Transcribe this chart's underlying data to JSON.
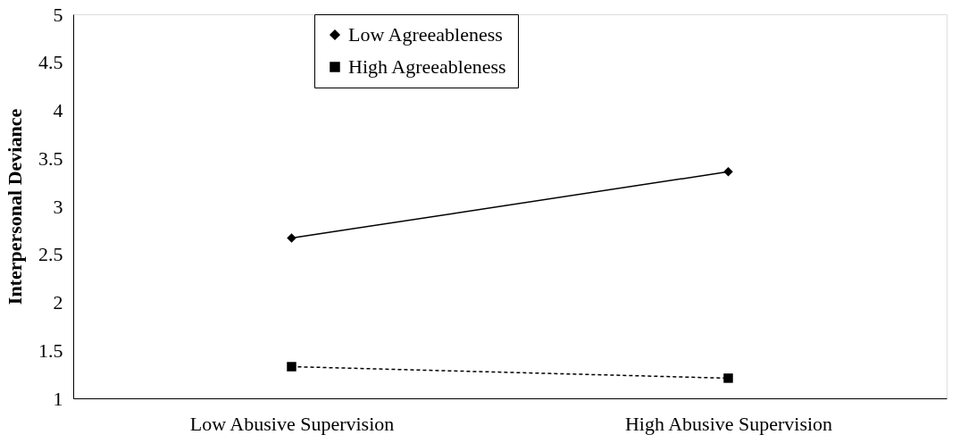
{
  "chart_data": {
    "type": "line",
    "ylabel": "Interpersonal Deviance",
    "categories": [
      "Low Abusive Supervision",
      "High Abusive Supervision"
    ],
    "series": [
      {
        "name": "Low Agreeableness",
        "color": "#000000",
        "values": [
          2.67,
          3.36
        ],
        "marker": "diamond",
        "line_style": "solid"
      },
      {
        "name": "High Agreeableness",
        "color": "#000000",
        "values": [
          1.33,
          1.21
        ],
        "marker": "square",
        "line_style": "dashed"
      }
    ],
    "ylim": [
      1,
      5
    ],
    "yticks": [
      1,
      1.5,
      2,
      2.5,
      3,
      3.5,
      4,
      4.5,
      5
    ],
    "grid": false,
    "legend": "top"
  }
}
